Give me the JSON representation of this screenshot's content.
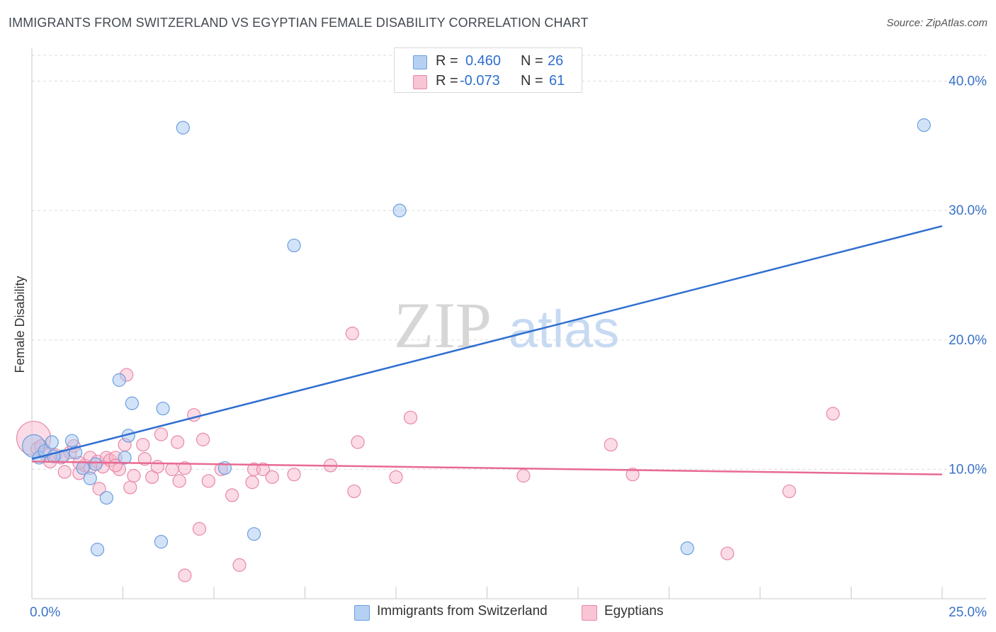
{
  "header": {
    "title": "IMMIGRANTS FROM SWITZERLAND VS EGYPTIAN FEMALE DISABILITY CORRELATION CHART",
    "source": "Source: ZipAtlas.com"
  },
  "legend_top": {
    "rows": [
      {
        "r_label": "R =",
        "r_value": "0.460",
        "n_label": "N =",
        "n_value": "26"
      },
      {
        "r_label": "R =",
        "r_value": "-0.073",
        "n_label": "N =",
        "n_value": "61"
      }
    ]
  },
  "watermark": {
    "zip": "ZIP",
    "atlas": "atlas"
  },
  "colors": {
    "blue_fill": "#a8c8f0",
    "blue_stroke": "#6a9ee0",
    "blue_line": "#2f6fd0",
    "pink_fill": "#f7b8cc",
    "pink_stroke": "#e888a8",
    "pink_line": "#e86a92",
    "axis_text": "#3a72c8",
    "grid": "#dcdcdc"
  },
  "chart_data": {
    "type": "scatter",
    "title": "IMMIGRANTS FROM SWITZERLAND VS EGYPTIAN FEMALE DISABILITY CORRELATION CHART",
    "xlabel": "",
    "ylabel": "Female Disability",
    "xlim": [
      0,
      25
    ],
    "ylim": [
      0,
      42
    ],
    "x_tick_labels": [
      {
        "value": 0,
        "label": "0.0%"
      },
      {
        "value": 25,
        "label": "25.0%"
      }
    ],
    "y_tick_labels": [
      {
        "value": 10,
        "label": "10.0%"
      },
      {
        "value": 20,
        "label": "20.0%"
      },
      {
        "value": 30,
        "label": "30.0%"
      },
      {
        "value": 40,
        "label": "40.0%"
      }
    ],
    "series": [
      {
        "name": "Immigrants from Switzerland",
        "color": "blue",
        "trend": {
          "x": [
            0,
            25
          ],
          "y": [
            10.8,
            28.8
          ]
        },
        "points": [
          [
            0.05,
            11.8
          ],
          [
            0.2,
            10.9
          ],
          [
            0.35,
            11.4
          ],
          [
            0.55,
            12.1
          ],
          [
            0.85,
            11.0
          ],
          [
            1.1,
            12.2
          ],
          [
            1.2,
            11.3
          ],
          [
            1.4,
            10.1
          ],
          [
            1.6,
            9.3
          ],
          [
            1.75,
            10.4
          ],
          [
            2.05,
            7.8
          ],
          [
            2.4,
            16.9
          ],
          [
            2.55,
            10.9
          ],
          [
            2.65,
            12.6
          ],
          [
            2.75,
            15.1
          ],
          [
            3.6,
            14.7
          ],
          [
            4.15,
            36.4
          ],
          [
            5.3,
            10.1
          ],
          [
            6.1,
            5.0
          ],
          [
            7.2,
            27.3
          ],
          [
            10.1,
            30.0
          ],
          [
            1.8,
            3.8
          ],
          [
            3.55,
            4.4
          ],
          [
            18.0,
            3.9
          ],
          [
            24.5,
            36.6
          ],
          [
            0.6,
            11.0
          ]
        ]
      },
      {
        "name": "Egyptians",
        "color": "pink",
        "trend": {
          "x": [
            0,
            25
          ],
          "y": [
            10.6,
            9.6
          ]
        },
        "points": [
          [
            0.05,
            12.4
          ],
          [
            0.15,
            11.6
          ],
          [
            0.25,
            11.8
          ],
          [
            0.35,
            11.2
          ],
          [
            0.5,
            10.6
          ],
          [
            0.65,
            11.1
          ],
          [
            0.8,
            10.9
          ],
          [
            0.9,
            9.8
          ],
          [
            1.05,
            11.3
          ],
          [
            1.15,
            11.8
          ],
          [
            1.3,
            9.7
          ],
          [
            1.45,
            10.3
          ],
          [
            1.6,
            10.1
          ],
          [
            1.6,
            10.9
          ],
          [
            1.8,
            10.6
          ],
          [
            1.85,
            8.5
          ],
          [
            1.95,
            10.2
          ],
          [
            2.05,
            10.9
          ],
          [
            2.15,
            10.7
          ],
          [
            2.3,
            10.9
          ],
          [
            2.4,
            10.0
          ],
          [
            2.55,
            11.9
          ],
          [
            2.6,
            17.3
          ],
          [
            2.7,
            8.6
          ],
          [
            2.8,
            9.5
          ],
          [
            3.05,
            11.9
          ],
          [
            3.1,
            10.8
          ],
          [
            3.3,
            9.4
          ],
          [
            3.45,
            10.2
          ],
          [
            3.55,
            12.7
          ],
          [
            3.85,
            10.0
          ],
          [
            4.0,
            12.1
          ],
          [
            4.05,
            9.1
          ],
          [
            4.2,
            10.1
          ],
          [
            4.45,
            14.2
          ],
          [
            4.6,
            5.4
          ],
          [
            4.7,
            12.3
          ],
          [
            4.85,
            9.1
          ],
          [
            5.2,
            10.0
          ],
          [
            5.5,
            8.0
          ],
          [
            5.7,
            2.6
          ],
          [
            6.05,
            9.0
          ],
          [
            6.1,
            10.0
          ],
          [
            6.35,
            10.0
          ],
          [
            6.6,
            9.4
          ],
          [
            7.2,
            9.6
          ],
          [
            8.2,
            10.3
          ],
          [
            8.8,
            20.5
          ],
          [
            8.85,
            8.3
          ],
          [
            8.95,
            12.1
          ],
          [
            10.0,
            9.4
          ],
          [
            10.4,
            14.0
          ],
          [
            13.5,
            9.5
          ],
          [
            15.9,
            11.9
          ],
          [
            16.5,
            9.6
          ],
          [
            19.1,
            3.5
          ],
          [
            20.8,
            8.3
          ],
          [
            22.0,
            14.3
          ],
          [
            4.2,
            1.8
          ],
          [
            2.3,
            10.3
          ],
          [
            1.3,
            10.5
          ]
        ]
      }
    ]
  }
}
